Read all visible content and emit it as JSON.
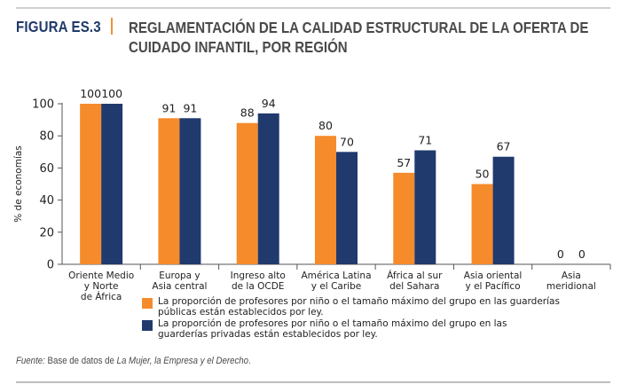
{
  "header": {
    "figure_label": "FIGURA ES.3",
    "title": "REGLAMENTACIÓN DE LA CALIDAD ESTRUCTURAL DE LA OFERTA DE CUIDADO INFANTIL, POR REGIÓN"
  },
  "source": {
    "prefix": "Fuente:",
    "text_plain": " Base de datos de ",
    "text_italic": "La Mujer, la Empresa y el Derecho",
    "suffix": "."
  },
  "colors": {
    "public": "#f58b2b",
    "private": "#203a6e",
    "figure_label": "#1f3a6a",
    "separator": "#f0923a"
  },
  "chart_data": {
    "type": "bar",
    "title": "REGLAMENTACIÓN DE LA CALIDAD ESTRUCTURAL DE LA OFERTA DE CUIDADO INFANTIL, POR REGIÓN",
    "xlabel": "",
    "ylabel": "% de economías",
    "ylim": [
      0,
      100
    ],
    "yticks": [
      0,
      20,
      40,
      60,
      80,
      100
    ],
    "grid": false,
    "legend_position": "bottom",
    "categories": [
      [
        "Oriente Medio",
        "y Norte",
        "de África"
      ],
      [
        "Europa y",
        "Asia central"
      ],
      [
        "Ingreso alto",
        "de la OCDE"
      ],
      [
        "América Latina",
        "y el Caribe"
      ],
      [
        "África al sur",
        "del Sahara"
      ],
      [
        "Asia oriental",
        "y el Pacífico"
      ],
      [
        "Asia",
        "meridional"
      ]
    ],
    "series": [
      {
        "name": "La proporción de profesores por niño o el tamaño máximo del grupo en las guarderías públicas están establecidos por ley.",
        "legend_lines": [
          "La proporción de profesores por niño o el tamaño máximo del grupo en las guarderías",
          "públicas están establecidos por ley."
        ],
        "color": "#f58b2b",
        "values": [
          100,
          91,
          88,
          80,
          57,
          50,
          0
        ]
      },
      {
        "name": "La proporción de profesores por niño o el tamaño máximo del grupo en las guarderías privadas están establecidos por ley.",
        "legend_lines": [
          "La proporción de profesores por niño o el tamaño máximo del grupo en las",
          "guarderías privadas están establecidos por ley."
        ],
        "color": "#203a6e",
        "values": [
          100,
          91,
          94,
          70,
          71,
          67,
          0
        ]
      }
    ]
  }
}
